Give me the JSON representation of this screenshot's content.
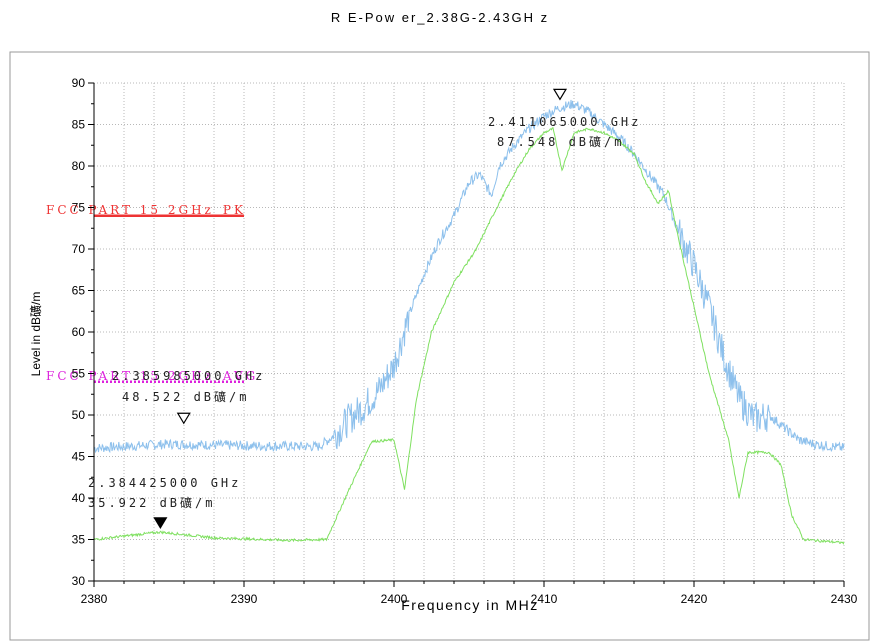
{
  "chart_data": {
    "type": "line",
    "title": "R E-Pow er_2.38G-2.43GH z",
    "xlabel": "Frequency in MHz",
    "ylabel": "Level in dB礦/m",
    "xlim": [
      2380,
      2430
    ],
    "ylim": [
      30,
      90
    ],
    "xticks": [
      "2380",
      "2390",
      "2400",
      "2410",
      "2420",
      "2430"
    ],
    "yticks": [
      "30",
      "35",
      "40",
      "45",
      "50",
      "55",
      "60",
      "65",
      "70",
      "75",
      "80",
      "85",
      "90"
    ],
    "grid": true,
    "colors": {
      "pk": "#8dc0ec",
      "avg": "#7fe060",
      "pk_limit": "#ee3333",
      "avg_limit": "#dd22dd"
    },
    "series": [
      {
        "role": "pk",
        "x": [
          2380,
          2385,
          2390,
          2395,
          2396,
          2397,
          2398,
          2399,
          2400,
          2401,
          2402,
          2403,
          2404,
          2405,
          2405.7,
          2406.5,
          2407,
          2408,
          2409,
          2410,
          2411,
          2412,
          2413,
          2414,
          2415,
          2416,
          2417,
          2418,
          2419,
          2420,
          2421,
          2422,
          2423,
          2424,
          2425,
          2426,
          2427,
          2428,
          2430
        ],
        "y": [
          46,
          46.5,
          46.3,
          46.2,
          47.5,
          49.5,
          51,
          53,
          56,
          62,
          67,
          71,
          74,
          78,
          79,
          76.5,
          80,
          82.5,
          84.5,
          86,
          87,
          87.5,
          86.5,
          85,
          83.5,
          81.5,
          79,
          76.5,
          72,
          68,
          63,
          57,
          52,
          49.5,
          50,
          48.5,
          47,
          46.5,
          46
        ]
      },
      {
        "role": "avg",
        "x": [
          2380,
          2384.4,
          2388,
          2393,
          2395.5,
          2397,
          2398.5,
          2400,
          2400.7,
          2401.5,
          2402.5,
          2404,
          2405.5,
          2406.3,
          2407,
          2408,
          2409,
          2410,
          2410.6,
          2411.2,
          2412,
          2413,
          2414,
          2415,
          2416,
          2416.8,
          2417.6,
          2418.3,
          2419,
          2420,
          2421,
          2422.3,
          2423,
          2423.6,
          2425,
          2425.8,
          2426.5,
          2427.3,
          2430
        ],
        "y": [
          35,
          35.9,
          35.2,
          34.9,
          35,
          41,
          46.8,
          47,
          41,
          52,
          60,
          66,
          70,
          73,
          75.5,
          79,
          82,
          84,
          84.5,
          79.5,
          84,
          84.5,
          84,
          83,
          81.5,
          78,
          75.5,
          77,
          71,
          63,
          55,
          47,
          40,
          45.5,
          45.5,
          44,
          38,
          35,
          34.6
        ]
      }
    ],
    "limit_lines": [
      {
        "label": "FCC PART 15 2GHz_PK",
        "y": 74,
        "x_range": [
          2380,
          2390
        ],
        "color": "#ee3333"
      },
      {
        "label": "FCC PART 15 2GHz_AVG",
        "y": 54,
        "x_range": [
          2380,
          2390
        ],
        "color": "#dd22dd"
      }
    ],
    "markers": [
      {
        "x": 2411.065,
        "y": 87.548,
        "freq_label": "2.411065000 GHz",
        "level_label": "87.548 dB礦/m",
        "filled": false
      },
      {
        "x": 2385.985,
        "y": 48.522,
        "freq_label": "2.385985000 GHz",
        "level_label": "48.522 dB礦/m",
        "filled": false
      },
      {
        "x": 2384.425,
        "y": 35.922,
        "freq_label": "2.384425000 GHz",
        "level_label": "35.922 dB礦/m",
        "filled": true
      }
    ]
  }
}
